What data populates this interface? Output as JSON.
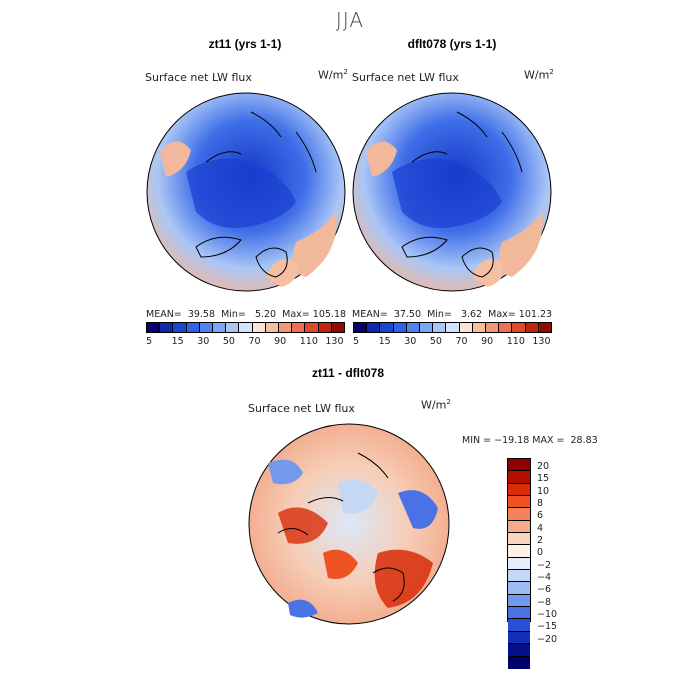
{
  "figure": {
    "season_title": "JJA"
  },
  "panels": [
    {
      "title": "zt11 (yrs 1-1)",
      "variable": "Surface net LW flux",
      "unit_base": "W/m",
      "unit_exp": "2",
      "stats_mean_label": "MEAN=",
      "stats_mean": "39.58",
      "stats_min_label": "Min=",
      "stats_min": "5.20",
      "stats_max_label": "Max=",
      "stats_max": "105.18"
    },
    {
      "title": "dflt078 (yrs 1-1)",
      "variable": "Surface net LW flux",
      "unit_base": "W/m",
      "unit_exp": "2",
      "stats_mean_label": "MEAN=",
      "stats_mean": "37.50",
      "stats_min_label": "Min=",
      "stats_min": "3.62",
      "stats_max_label": "Max=",
      "stats_max": "101.23"
    }
  ],
  "abs_colorbar": {
    "colors": [
      "#08006e",
      "#0f2aa8",
      "#1848d0",
      "#2f63e6",
      "#4f83ee",
      "#7aa6f2",
      "#a9c6f6",
      "#d3e3fa",
      "#fbe4d6",
      "#f7bfa2",
      "#f2987a",
      "#ec7152",
      "#e04a2c",
      "#c22412",
      "#8e0c06"
    ],
    "ticks": [
      "5",
      "15",
      "30",
      "50",
      "70",
      "90",
      "110",
      "130"
    ]
  },
  "diff_panel": {
    "title": "zt11 - dflt078",
    "variable": "Surface net LW flux",
    "unit_base": "W/m",
    "unit_exp": "2",
    "stats": "MIN = −19.18 MAX =  28.83"
  },
  "diff_colorbar": {
    "colors": [
      "#900000",
      "#b40e00",
      "#d82c08",
      "#ef5322",
      "#f38258",
      "#f4ab8a",
      "#f8d3bf",
      "#fff1e4",
      "#e5eefa",
      "#c4d8f6",
      "#9cbcf1",
      "#7299ec",
      "#4a72e4",
      "#2a4fd6",
      "#1430b8",
      "#080f8a",
      "#00006c"
    ],
    "labels": [
      "20",
      "15",
      "10",
      "8",
      "6",
      "4",
      "2",
      "0",
      "−2",
      "−4",
      "−6",
      "−8",
      "−10",
      "−15",
      "−20"
    ]
  }
}
